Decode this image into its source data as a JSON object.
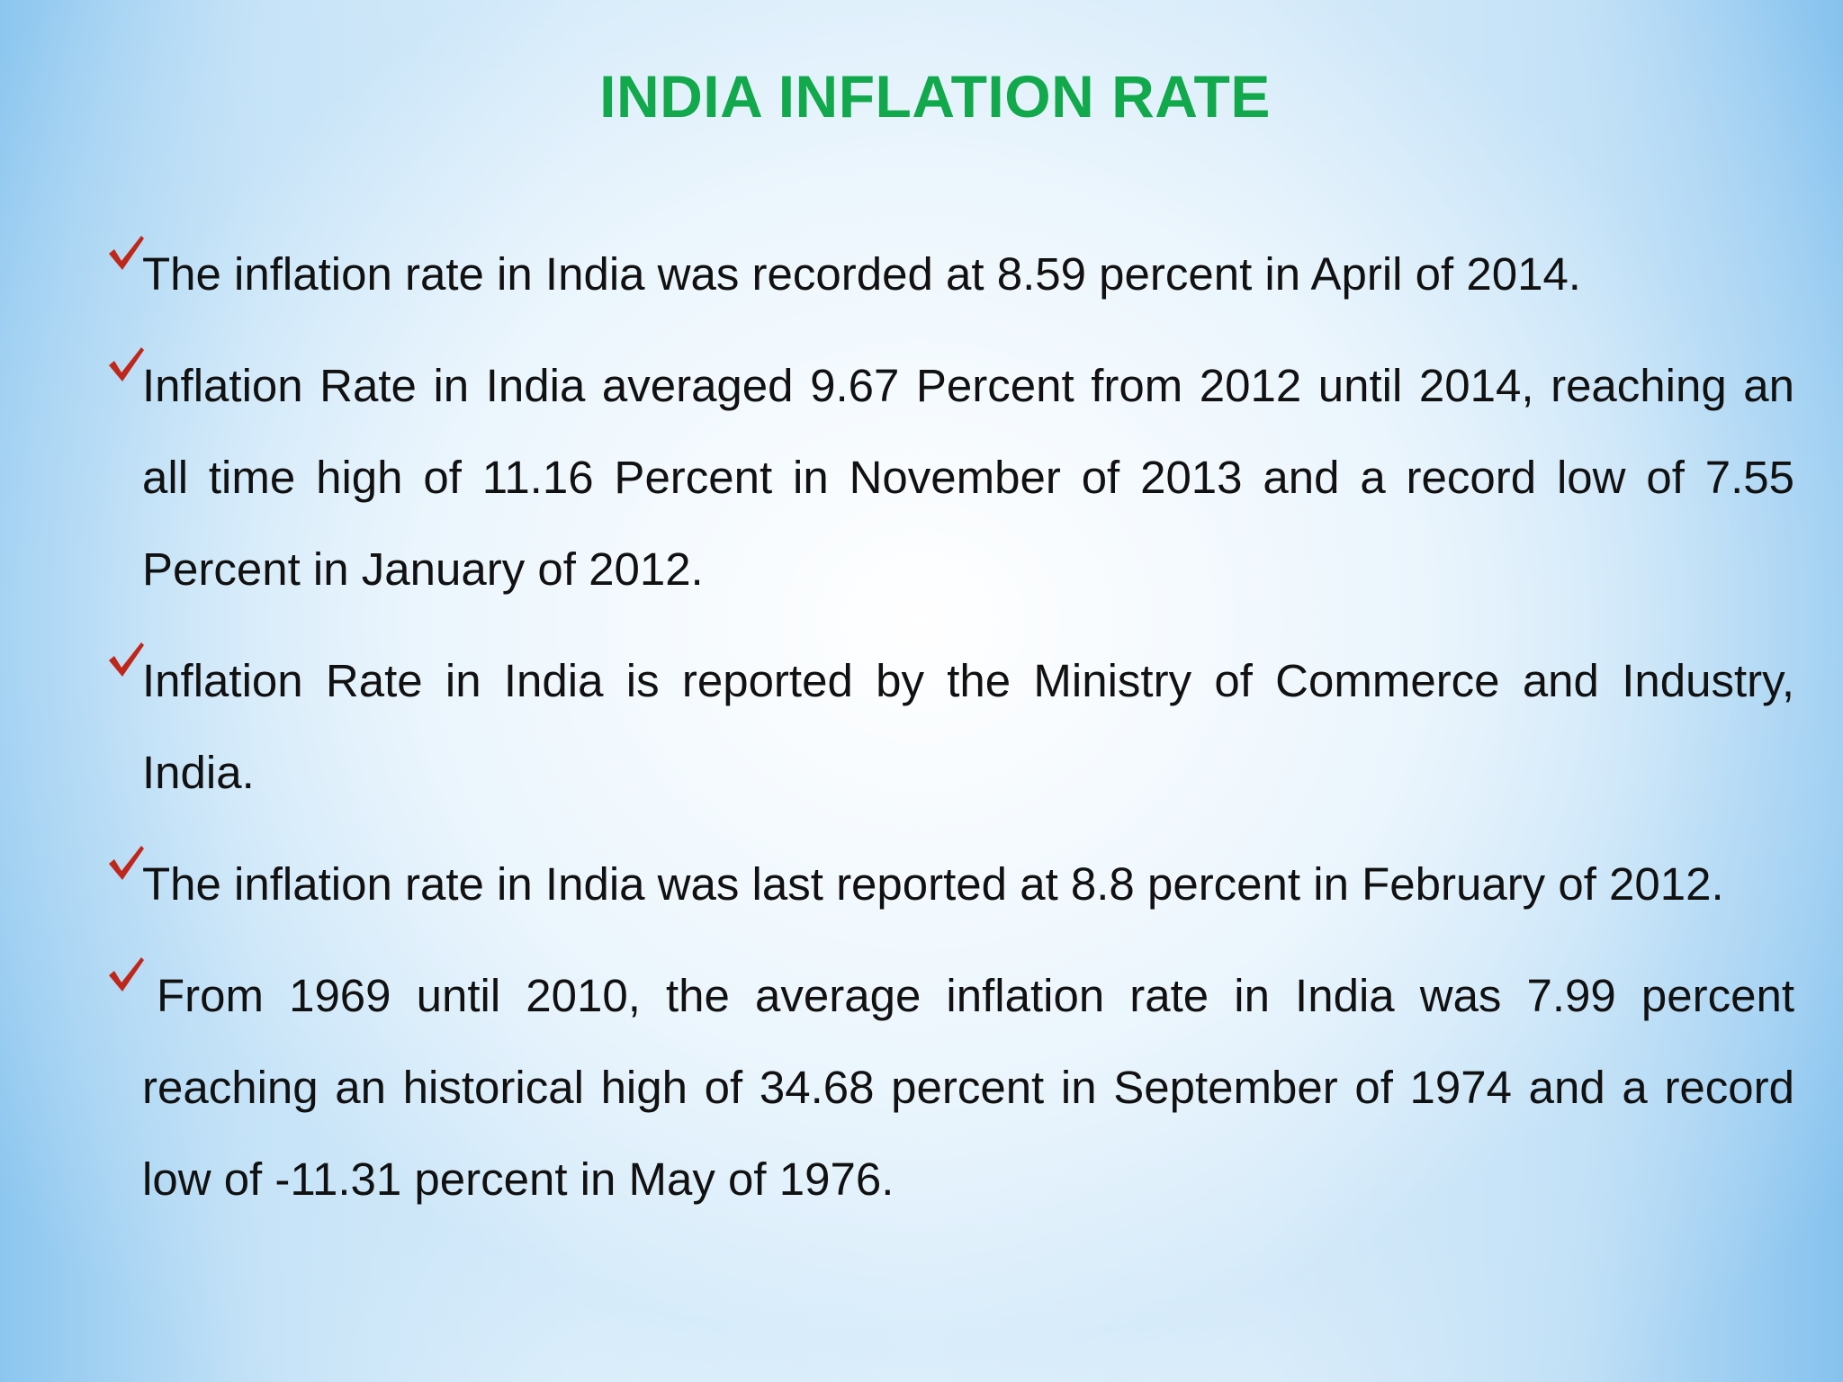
{
  "slide": {
    "title": "INDIA INFLATION RATE",
    "bullet_icon": "checkmark-icon",
    "bullet_color": "#c0271b",
    "title_color": "#12a84c",
    "bullets": [
      "The inflation rate in India was recorded at 8.59 percent in April of 2014.",
      "Inflation Rate in India averaged 9.67 Percent from 2012 until 2014, reaching an all time high of 11.16 Percent in November of 2013 and a record low of 7.55 Percent in January of 2012.",
      "Inflation Rate in India is reported by the Ministry of Commerce and Industry, India.",
      "The inflation rate in India was last reported at 8.8 percent in February of 2012.",
      "From 1969 until 2010, the average inflation rate in India was 7.99 percent reaching an historical high of 34.68 percent in September of 1974 and a record low of -11.31 percent in May of 1976."
    ]
  }
}
